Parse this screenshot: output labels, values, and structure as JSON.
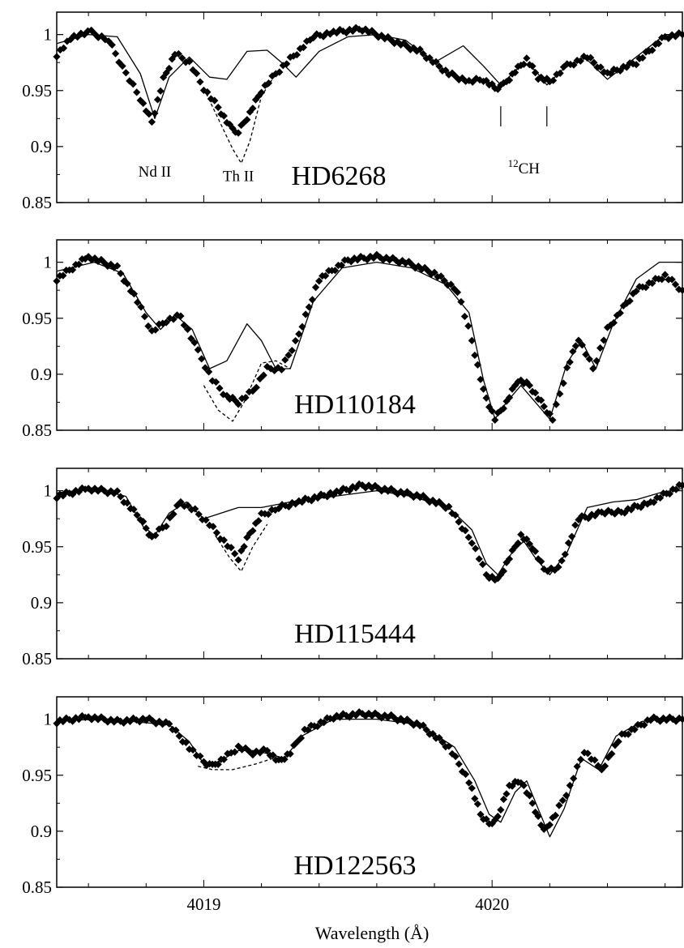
{
  "figure": {
    "xlabel": "Wavelength (Å)",
    "x_ticks": [
      4019,
      4020
    ],
    "y_ticks": [
      0.85,
      0.9,
      0.95,
      1
    ]
  },
  "chart_data": [
    {
      "type": "line",
      "star": "HD6268",
      "xlabel": "Wavelength (Å)",
      "ylabel": "",
      "xlim": [
        4018.49,
        4020.66
      ],
      "ylim": [
        0.85,
        1.02
      ],
      "annotations": [
        {
          "text": "Nd II",
          "x": 4018.83,
          "y": 0.873
        },
        {
          "text": "Th II",
          "x": 4019.12,
          "y": 0.869
        },
        {
          "text": "12CH",
          "x": 4020.11,
          "y": 0.876
        }
      ],
      "markers": [
        4020.03,
        4020.19
      ],
      "series": [
        {
          "style": "diamonds",
          "x": [
            4018.49,
            4018.55,
            4018.61,
            4018.67,
            4018.73,
            4018.78,
            4018.82,
            4018.86,
            4018.9,
            4018.95,
            4019.0,
            4019.05,
            4019.09,
            4019.12,
            4019.16,
            4019.2,
            4019.25,
            4019.3,
            4019.38,
            4019.45,
            4019.55,
            4019.65,
            4019.75,
            4019.85,
            4019.92,
            4019.97,
            4020.01,
            4020.04,
            4020.08,
            4020.12,
            4020.16,
            4020.2,
            4020.26,
            4020.33,
            4020.4,
            4020.5,
            4020.6,
            4020.66
          ],
          "y": [
            0.982,
            0.999,
            1.002,
            0.995,
            0.965,
            0.943,
            0.922,
            0.96,
            0.983,
            0.975,
            0.952,
            0.935,
            0.918,
            0.913,
            0.93,
            0.95,
            0.965,
            0.978,
            0.998,
            1.002,
            1.005,
            0.995,
            0.985,
            0.965,
            0.958,
            0.96,
            0.952,
            0.955,
            0.967,
            0.978,
            0.962,
            0.958,
            0.972,
            0.98,
            0.965,
            0.975,
            0.998,
            1.0
          ]
        },
        {
          "style": "solid",
          "x": [
            4018.49,
            4018.6,
            4018.7,
            4018.78,
            4018.83,
            4018.88,
            4018.95,
            4019.02,
            4019.08,
            4019.15,
            4019.22,
            4019.27,
            4019.32,
            4019.4,
            4019.5,
            4019.6,
            4019.7,
            4019.8,
            4019.9,
            4019.97,
            4020.03,
            4020.07,
            4020.11,
            4020.15,
            4020.19,
            4020.25,
            4020.32,
            4020.4,
            4020.5,
            4020.6,
            4020.66
          ],
          "y": [
            0.992,
            1.0,
            0.998,
            0.965,
            0.925,
            0.962,
            0.98,
            0.962,
            0.96,
            0.985,
            0.986,
            0.975,
            0.962,
            0.985,
            0.998,
            1.0,
            0.995,
            0.975,
            0.99,
            0.972,
            0.955,
            0.965,
            0.975,
            0.968,
            0.955,
            0.97,
            0.98,
            0.96,
            0.98,
            1.0,
            1.0
          ]
        },
        {
          "style": "dashed",
          "x": [
            4019.0,
            4019.05,
            4019.1,
            4019.13,
            4019.16,
            4019.2,
            4019.25
          ],
          "y": [
            0.952,
            0.925,
            0.898,
            0.885,
            0.905,
            0.945,
            0.965
          ]
        }
      ]
    },
    {
      "type": "line",
      "star": "HD110184",
      "xlabel": "Wavelength (Å)",
      "ylabel": "",
      "xlim": [
        4018.49,
        4020.66
      ],
      "ylim": [
        0.85,
        1.02
      ],
      "series": [
        {
          "style": "diamonds",
          "x": [
            4018.49,
            4018.6,
            4018.7,
            4018.77,
            4018.82,
            4018.87,
            4018.92,
            4018.98,
            4019.03,
            4019.08,
            4019.12,
            4019.17,
            4019.22,
            4019.27,
            4019.33,
            4019.4,
            4019.5,
            4019.6,
            4019.7,
            4019.8,
            4019.88,
            4019.93,
            4019.97,
            4020.01,
            4020.05,
            4020.09,
            4020.13,
            4020.17,
            4020.21,
            4020.26,
            4020.3,
            4020.35,
            4020.4,
            4020.5,
            4020.6,
            4020.66
          ],
          "y": [
            0.985,
            1.005,
            0.995,
            0.965,
            0.938,
            0.948,
            0.952,
            0.92,
            0.895,
            0.88,
            0.875,
            0.885,
            0.905,
            0.905,
            0.935,
            0.985,
            1.002,
            1.005,
            1.0,
            0.99,
            0.975,
            0.93,
            0.885,
            0.86,
            0.875,
            0.895,
            0.89,
            0.875,
            0.86,
            0.905,
            0.932,
            0.905,
            0.94,
            0.975,
            0.988,
            0.975
          ]
        },
        {
          "style": "solid",
          "x": [
            4018.49,
            4018.62,
            4018.72,
            4018.8,
            4018.85,
            4018.9,
            4018.96,
            4019.02,
            4019.08,
            4019.15,
            4019.2,
            4019.25,
            4019.3,
            4019.38,
            4019.48,
            4019.6,
            4019.72,
            4019.84,
            4019.92,
            4019.97,
            4020.01,
            4020.05,
            4020.1,
            4020.15,
            4020.2,
            4020.26,
            4020.31,
            4020.36,
            4020.42,
            4020.5,
            4020.58,
            4020.66
          ],
          "y": [
            0.992,
            1.0,
            0.99,
            0.955,
            0.94,
            0.953,
            0.94,
            0.905,
            0.912,
            0.945,
            0.93,
            0.905,
            0.905,
            0.965,
            0.995,
            1.0,
            0.995,
            0.98,
            0.955,
            0.895,
            0.86,
            0.875,
            0.89,
            0.875,
            0.86,
            0.91,
            0.93,
            0.905,
            0.945,
            0.985,
            1.0,
            1.0
          ]
        },
        {
          "style": "dashed",
          "x": [
            4019.0,
            4019.05,
            4019.1,
            4019.14,
            4019.2,
            4019.25,
            4019.3
          ],
          "y": [
            0.89,
            0.868,
            0.858,
            0.875,
            0.91,
            0.912,
            0.905
          ]
        }
      ]
    },
    {
      "type": "line",
      "star": "HD115444",
      "xlabel": "Wavelength (Å)",
      "ylabel": "",
      "xlim": [
        4018.49,
        4020.66
      ],
      "ylim": [
        0.85,
        1.02
      ],
      "series": [
        {
          "style": "diamonds",
          "x": [
            4018.49,
            4018.6,
            4018.7,
            4018.78,
            4018.82,
            4018.87,
            4018.92,
            4018.97,
            4019.02,
            4019.07,
            4019.12,
            4019.16,
            4019.2,
            4019.26,
            4019.33,
            4019.45,
            4019.55,
            4019.65,
            4019.75,
            4019.85,
            4019.93,
            4019.98,
            4020.02,
            4020.06,
            4020.1,
            4020.14,
            4020.18,
            4020.23,
            4020.3,
            4020.38,
            4020.46,
            4020.55,
            4020.66
          ],
          "y": [
            0.995,
            1.002,
            0.998,
            0.975,
            0.958,
            0.97,
            0.99,
            0.982,
            0.97,
            0.955,
            0.94,
            0.962,
            0.978,
            0.985,
            0.99,
            0.998,
            1.005,
            1.0,
            0.995,
            0.985,
            0.955,
            0.925,
            0.92,
            0.94,
            0.96,
            0.95,
            0.93,
            0.93,
            0.975,
            0.98,
            0.982,
            0.99,
            1.005
          ]
        },
        {
          "style": "solid",
          "x": [
            4018.49,
            4018.62,
            4018.73,
            4018.79,
            4018.83,
            4018.88,
            4018.94,
            4019.0,
            4019.06,
            4019.12,
            4019.2,
            4019.3,
            4019.45,
            4019.6,
            4019.72,
            4019.85,
            4019.93,
            4019.98,
            4020.02,
            4020.07,
            4020.11,
            4020.15,
            4020.2,
            4020.26,
            4020.33,
            4020.42,
            4020.5,
            4020.58,
            4020.66
          ],
          "y": [
            0.998,
            1.002,
            0.995,
            0.968,
            0.96,
            0.98,
            0.99,
            0.975,
            0.98,
            0.985,
            0.985,
            0.99,
            0.995,
            1.0,
            0.995,
            0.985,
            0.965,
            0.935,
            0.925,
            0.945,
            0.955,
            0.94,
            0.925,
            0.945,
            0.985,
            0.99,
            0.992,
            0.998,
            1.002
          ]
        },
        {
          "style": "dashed",
          "x": [
            4019.04,
            4019.09,
            4019.13,
            4019.17,
            4019.22
          ],
          "y": [
            0.96,
            0.94,
            0.928,
            0.95,
            0.97
          ]
        }
      ]
    },
    {
      "type": "line",
      "star": "HD122563",
      "xlabel": "Wavelength (Å)",
      "ylabel": "",
      "xlim": [
        4018.49,
        4020.66
      ],
      "ylim": [
        0.85,
        1.02
      ],
      "series": [
        {
          "style": "diamonds",
          "x": [
            4018.49,
            4018.6,
            4018.7,
            4018.8,
            4018.88,
            4018.95,
            4019.0,
            4019.03,
            4019.07,
            4019.12,
            4019.17,
            4019.22,
            4019.26,
            4019.3,
            4019.35,
            4019.45,
            4019.55,
            4019.65,
            4019.75,
            4019.85,
            4019.92,
            4019.96,
            4020.0,
            4020.03,
            4020.06,
            4020.1,
            4020.14,
            4020.18,
            4020.22,
            4020.27,
            4020.32,
            4020.38,
            4020.45,
            4020.55,
            4020.66
          ],
          "y": [
            0.998,
            1.002,
            0.998,
            1.0,
            0.995,
            0.975,
            0.962,
            0.958,
            0.965,
            0.975,
            0.97,
            0.972,
            0.962,
            0.97,
            0.99,
            1.002,
            1.005,
            1.002,
            0.995,
            0.975,
            0.945,
            0.915,
            0.905,
            0.92,
            0.94,
            0.945,
            0.925,
            0.9,
            0.915,
            0.94,
            0.972,
            0.955,
            0.985,
            1.0,
            1.0
          ]
        },
        {
          "style": "solid",
          "x": [
            4018.49,
            4018.62,
            4018.75,
            4018.88,
            4018.95,
            4019.0,
            4019.05,
            4019.12,
            4019.18,
            4019.24,
            4019.28,
            4019.34,
            4019.45,
            4019.6,
            4019.75,
            4019.87,
            4019.94,
            4019.99,
            4020.03,
            4020.08,
            4020.12,
            4020.16,
            4020.2,
            4020.25,
            4020.31,
            4020.37,
            4020.43,
            4020.52,
            4020.6,
            4020.66
          ],
          "y": [
            0.998,
            1.0,
            0.998,
            0.995,
            0.98,
            0.96,
            0.962,
            0.972,
            0.972,
            0.968,
            0.965,
            0.985,
            1.0,
            1.0,
            0.995,
            0.975,
            0.945,
            0.915,
            0.908,
            0.935,
            0.945,
            0.92,
            0.895,
            0.92,
            0.965,
            0.955,
            0.985,
            0.998,
            1.0,
            1.0
          ]
        },
        {
          "style": "dashed",
          "x": [
            4018.98,
            4019.03,
            4019.1,
            4019.18,
            4019.24
          ],
          "y": [
            0.958,
            0.955,
            0.955,
            0.96,
            0.965
          ]
        }
      ]
    }
  ]
}
